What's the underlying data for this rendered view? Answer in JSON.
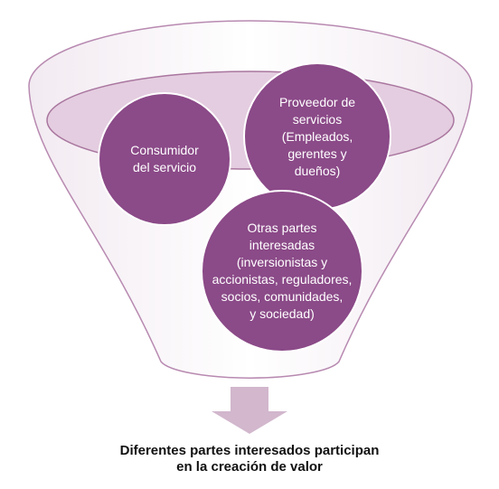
{
  "colors": {
    "circle_fill": "#8B4A88",
    "circle_stroke": "#ffffff",
    "ellipse_fill": "#E4CDE0",
    "ellipse_stroke": "#A9769F",
    "funnel_stroke": "#B88AB1",
    "arrow_fill": "#D2B7CD"
  },
  "circles": {
    "consumer": "Consumidor\ndel servicio",
    "provider": "Proveedor de\nservicios\n(Empleados,\ngerentes y\ndueños)",
    "others": "Otras partes\ninteresadas\n(inversionistas y\naccionistas, reguladores,\nsocios, comunidades,\ny sociedad)"
  },
  "caption": "Diferentes partes interesados participan\nen la creación de valor"
}
